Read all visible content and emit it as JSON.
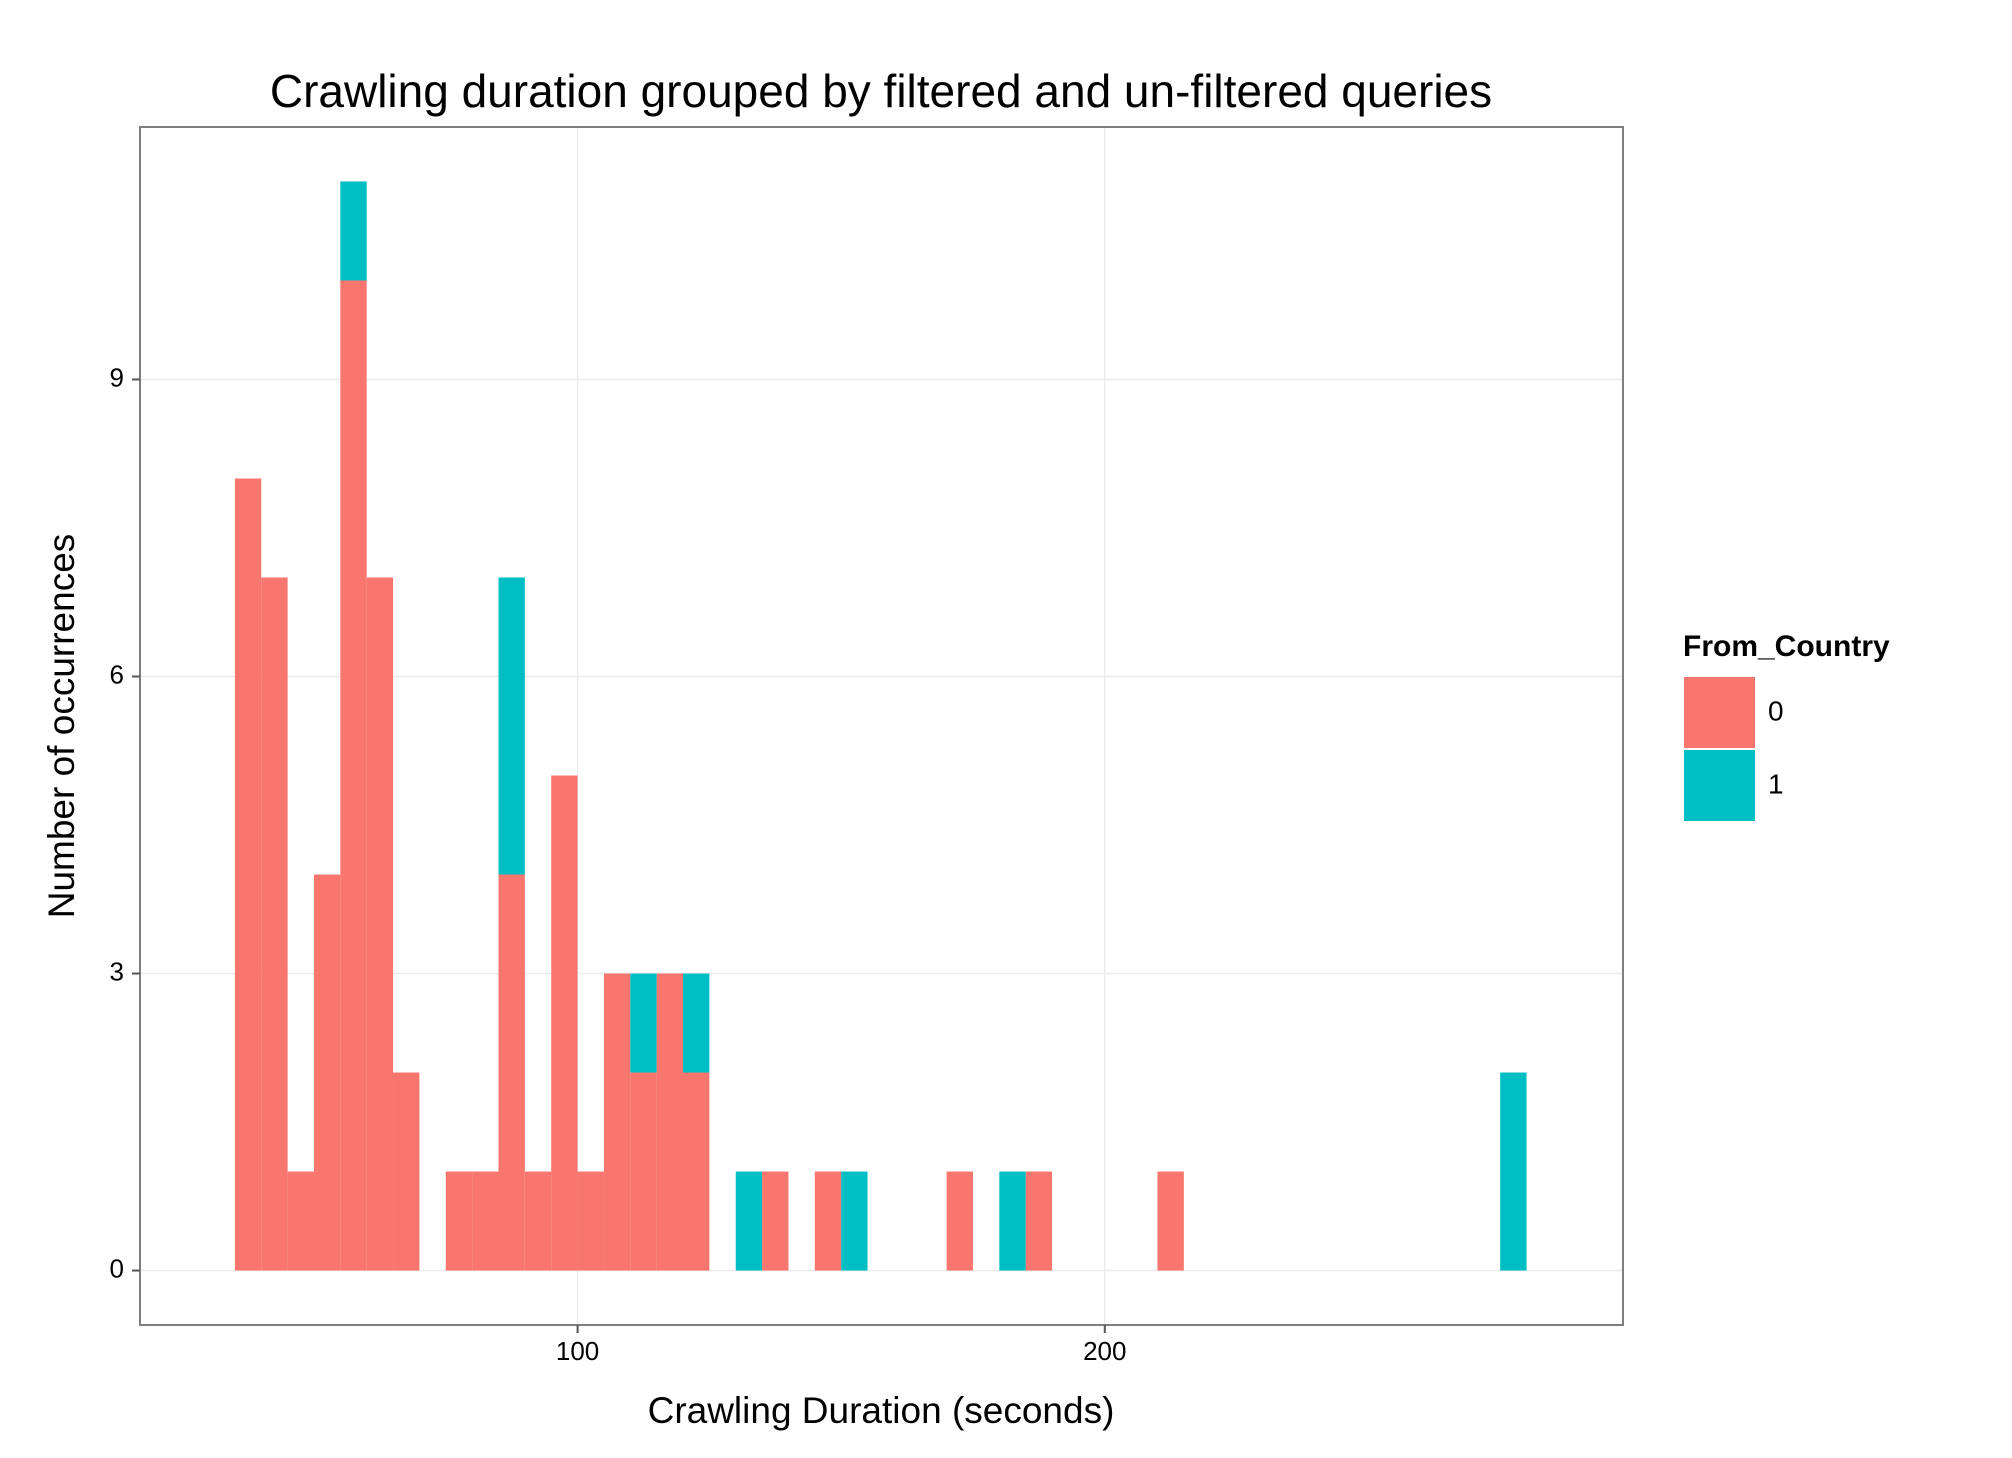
{
  "chart_data": {
    "type": "histogram",
    "title": "Crawling duration grouped by filtered and un-filtered queries",
    "x_label": "Crawling Duration (seconds)",
    "y_label": "Number of occurrences",
    "bins": [
      35,
      40,
      45,
      50,
      55,
      60,
      65,
      70,
      75,
      80,
      85,
      90,
      95,
      100,
      105,
      110,
      115,
      120,
      125,
      130,
      135,
      140,
      145,
      150,
      155,
      160,
      165,
      170,
      175,
      180,
      185,
      190,
      195,
      200,
      205,
      210,
      215,
      220,
      225,
      230,
      235,
      240,
      245,
      250,
      255,
      260,
      265,
      270,
      275,
      280
    ],
    "series": [
      {
        "name": "0",
        "color": "#F8766D",
        "values": [
          8,
          7,
          1,
          4,
          10,
          7,
          2,
          0,
          1,
          1,
          4,
          1,
          5,
          1,
          3,
          2,
          3,
          2,
          0,
          0,
          1,
          0,
          1,
          0,
          0,
          0,
          0,
          1,
          0,
          0,
          1,
          0,
          0,
          0,
          0,
          1,
          0,
          0,
          0,
          0,
          0,
          0,
          0,
          0,
          0,
          0,
          0,
          0,
          0
        ]
      },
      {
        "name": "1",
        "color": "#00BFC4",
        "values": [
          0,
          0,
          0,
          0,
          1,
          0,
          0,
          0,
          0,
          0,
          3,
          0,
          0,
          0,
          0,
          1,
          0,
          1,
          0,
          1,
          0,
          0,
          0,
          1,
          0,
          0,
          0,
          0,
          0,
          1,
          0,
          0,
          0,
          0,
          0,
          0,
          0,
          0,
          0,
          0,
          0,
          0,
          0,
          0,
          0,
          0,
          0,
          0,
          2
        ]
      }
    ],
    "legend_title": "From_Country",
    "legend": "right",
    "stacked": true,
    "grid": true,
    "xlim": [
      17,
      298.3
    ],
    "ylim": [
      -0.55,
      11.55
    ],
    "xticks": [
      100,
      200
    ],
    "yticks": [
      0,
      3,
      6,
      9
    ]
  }
}
